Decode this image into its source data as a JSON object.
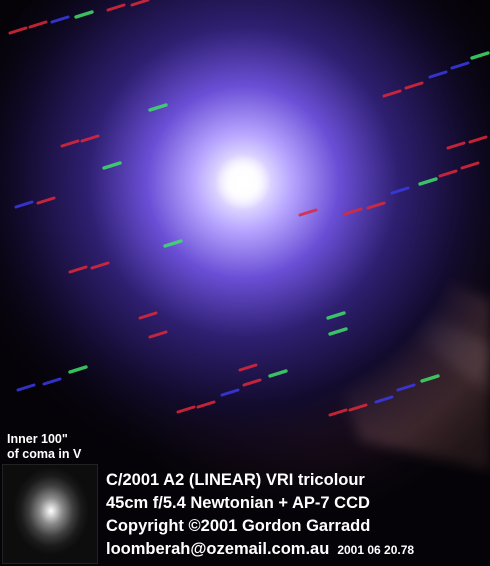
{
  "inset": {
    "label_line1": "Inner 100\"",
    "label_line2": "of coma in V"
  },
  "caption": {
    "title": "C/2001 A2 (LINEAR) VRI tricolour",
    "instrument": "45cm f/5.4 Newtonian + AP-7 CCD",
    "copyright": "Copyright ©2001 Gordon Garradd",
    "email": "loomberah@ozemail.com.au",
    "date": "2001 06 20.78"
  },
  "colors": {
    "coma_core": "#ffffff",
    "coma_inner": "#b8a6ff",
    "coma_mid": "#6a4fd6",
    "tail": "#c98ab0",
    "star_trail_red": "#e0283a",
    "star_trail_green": "#3fe06a",
    "star_trail_blue": "#3a3ae8",
    "background": "#050308",
    "caption_text": "#ffffff"
  }
}
